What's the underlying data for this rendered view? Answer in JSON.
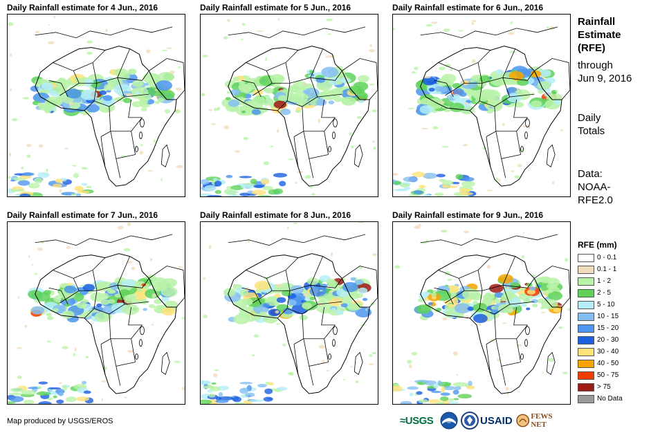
{
  "panels": [
    {
      "title": "Daily Rainfall estimate for 4 Jun., 2016"
    },
    {
      "title": "Daily Rainfall estimate for 5 Jun., 2016"
    },
    {
      "title": "Daily Rainfall estimate for 6 Jun., 2016"
    },
    {
      "title": "Daily Rainfall estimate for 7 Jun., 2016"
    },
    {
      "title": "Daily Rainfall estimate for 8 Jun., 2016"
    },
    {
      "title": "Daily Rainfall estimate for 9 Jun., 2016"
    }
  ],
  "side": {
    "title_lines": [
      "Rainfall",
      "Estimate",
      "(RFE)"
    ],
    "through_lines": [
      "through",
      "Jun 9, 2016"
    ],
    "daily_lines": [
      "Daily",
      "Totals"
    ],
    "data_lines": [
      "Data:",
      "NOAA-",
      "RFE2.0"
    ]
  },
  "legend": {
    "title": "RFE (mm)",
    "items": [
      {
        "label": "0 - 0.1",
        "color": "#ffffff"
      },
      {
        "label": "0.1 - 1",
        "color": "#efdcbc"
      },
      {
        "label": "1 - 2",
        "color": "#b9f2a9"
      },
      {
        "label": "2 - 5",
        "color": "#5fd25a"
      },
      {
        "label": "5 - 10",
        "color": "#b5eef7"
      },
      {
        "label": "10 - 15",
        "color": "#85bff2"
      },
      {
        "label": "15 - 20",
        "color": "#4d95ee"
      },
      {
        "label": "20 - 30",
        "color": "#1c5fe0"
      },
      {
        "label": "30 - 40",
        "color": "#ffe27a"
      },
      {
        "label": "40 - 50",
        "color": "#f7a400"
      },
      {
        "label": "50 - 75",
        "color": "#f23c00"
      },
      {
        "label": "> 75",
        "color": "#9e1a14"
      },
      {
        "label": "No Data",
        "color": "#9a9a9a"
      }
    ]
  },
  "credit": "Map produced by USGS/EROS",
  "logos": {
    "usgs": "≈USGS",
    "usaid": "USAID",
    "fews": "FEWS NET"
  }
}
